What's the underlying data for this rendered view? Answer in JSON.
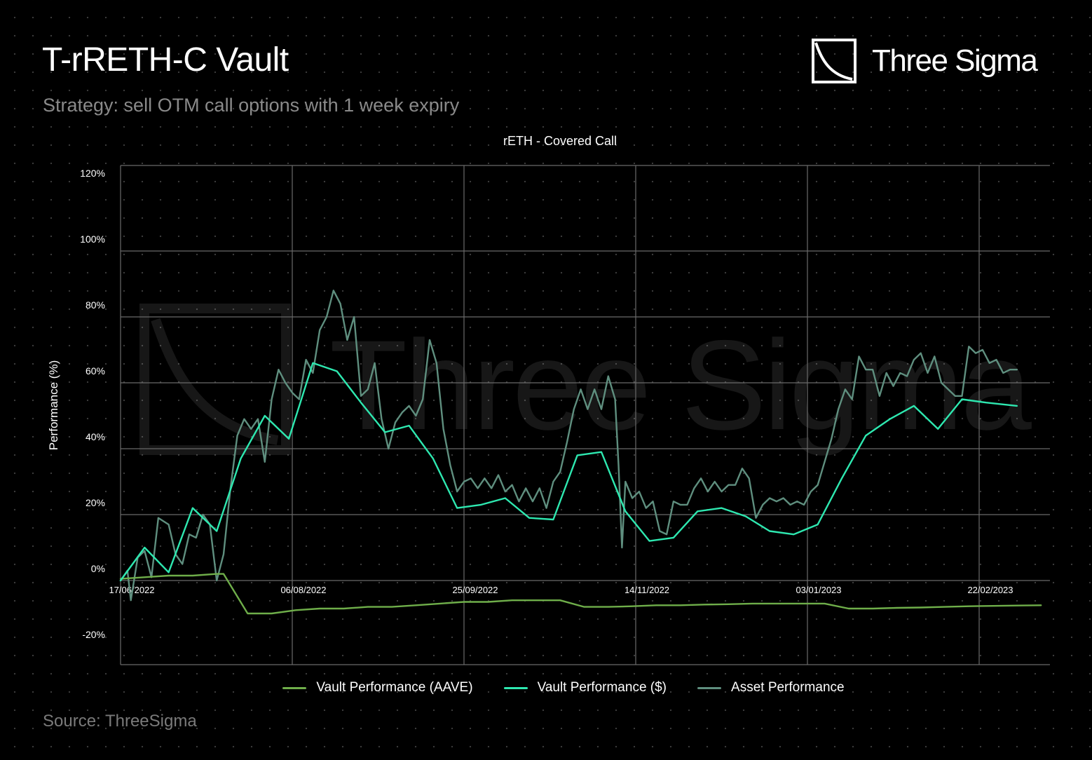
{
  "header": {
    "title": "T-rRETH-C Vault",
    "subtitle": "Strategy: sell OTM call options with 1 week expiry",
    "logo_text": "Three Sigma",
    "source": "Source: ThreeSigma"
  },
  "watermark": {
    "text": "Three Sigma"
  },
  "colors": {
    "background": "#000000",
    "grid": "#6a6a6a",
    "vault_aave": "#6fae4a",
    "vault_usd": "#2ee8b0",
    "asset": "#5f8f7f",
    "tick_text": "#ffffff"
  },
  "chart_data": {
    "type": "line",
    "title": "rETH - Covered Call",
    "xlabel": "",
    "ylabel": "Performance (%)",
    "ylim": [
      -25,
      125
    ],
    "yticks": [
      -20,
      0,
      20,
      40,
      60,
      80,
      100,
      120
    ],
    "ytick_labels": [
      "-20%",
      "0%",
      "20%",
      "40%",
      "60%",
      "80%",
      "100%",
      "120%"
    ],
    "xlim": [
      "2022-06-17",
      "2023-03-17"
    ],
    "xticks": [
      "2022-06-17",
      "2022-08-06",
      "2022-09-25",
      "2022-11-14",
      "2023-01-03",
      "2023-02-22"
    ],
    "xtick_labels": [
      "17/06/2022",
      "06/08/2022",
      "25/09/2022",
      "14/11/2022",
      "03/01/2023",
      "22/02/2023"
    ],
    "grid": true,
    "legend": "bottom",
    "series": [
      {
        "name": "Vault Performance (AAVE)",
        "color": "#6fae4a",
        "points": [
          [
            "2022-06-17",
            0.5
          ],
          [
            "2022-06-24",
            1
          ],
          [
            "2022-07-01",
            1.5
          ],
          [
            "2022-07-08",
            1.5
          ],
          [
            "2022-07-15",
            2
          ],
          [
            "2022-07-17",
            2
          ],
          [
            "2022-07-24",
            -10
          ],
          [
            "2022-07-31",
            -10
          ],
          [
            "2022-08-07",
            -9
          ],
          [
            "2022-08-14",
            -8.5
          ],
          [
            "2022-08-21",
            -8.5
          ],
          [
            "2022-08-28",
            -8
          ],
          [
            "2022-09-04",
            -8
          ],
          [
            "2022-09-11",
            -7.5
          ],
          [
            "2022-09-18",
            -7
          ],
          [
            "2022-09-25",
            -6.5
          ],
          [
            "2022-10-02",
            -6.5
          ],
          [
            "2022-10-09",
            -6
          ],
          [
            "2022-10-16",
            -6
          ],
          [
            "2022-10-23",
            -6
          ],
          [
            "2022-10-30",
            -8
          ],
          [
            "2022-11-06",
            -8
          ],
          [
            "2022-11-13",
            -7.8
          ],
          [
            "2022-11-20",
            -7.5
          ],
          [
            "2022-11-27",
            -7.5
          ],
          [
            "2022-12-04",
            -7.3
          ],
          [
            "2022-12-11",
            -7.2
          ],
          [
            "2022-12-18",
            -7
          ],
          [
            "2022-12-25",
            -7
          ],
          [
            "2023-01-01",
            -7
          ],
          [
            "2023-01-08",
            -7
          ],
          [
            "2023-01-15",
            -8.5
          ],
          [
            "2023-01-22",
            -8.5
          ],
          [
            "2023-01-29",
            -8.3
          ],
          [
            "2023-02-05",
            -8.2
          ],
          [
            "2023-02-12",
            -8
          ],
          [
            "2023-02-19",
            -7.8
          ],
          [
            "2023-02-26",
            -7.7
          ],
          [
            "2023-03-05",
            -7.6
          ],
          [
            "2023-03-12",
            -7.5
          ]
        ]
      },
      {
        "name": "Vault Performance ($)",
        "color": "#2ee8b0",
        "points": [
          [
            "2022-06-17",
            0
          ],
          [
            "2022-06-24",
            10
          ],
          [
            "2022-07-01",
            2.5
          ],
          [
            "2022-07-08",
            22
          ],
          [
            "2022-07-15",
            15
          ],
          [
            "2022-07-22",
            37
          ],
          [
            "2022-07-29",
            50
          ],
          [
            "2022-08-05",
            43
          ],
          [
            "2022-08-12",
            66
          ],
          [
            "2022-08-19",
            63.5
          ],
          [
            "2022-08-26",
            54
          ],
          [
            "2022-09-02",
            45
          ],
          [
            "2022-09-09",
            47
          ],
          [
            "2022-09-16",
            37
          ],
          [
            "2022-09-23",
            22
          ],
          [
            "2022-09-30",
            23
          ],
          [
            "2022-10-07",
            25
          ],
          [
            "2022-10-14",
            19
          ],
          [
            "2022-10-21",
            18.5
          ],
          [
            "2022-10-28",
            38
          ],
          [
            "2022-11-04",
            39
          ],
          [
            "2022-11-11",
            21
          ],
          [
            "2022-11-18",
            12
          ],
          [
            "2022-11-25",
            13
          ],
          [
            "2022-12-02",
            21
          ],
          [
            "2022-12-09",
            22
          ],
          [
            "2022-12-16",
            19.5
          ],
          [
            "2022-12-23",
            15
          ],
          [
            "2022-12-30",
            14
          ],
          [
            "2023-01-06",
            17
          ],
          [
            "2023-01-13",
            31
          ],
          [
            "2023-01-20",
            44
          ],
          [
            "2023-01-27",
            49
          ],
          [
            "2023-02-03",
            53
          ],
          [
            "2023-02-10",
            46
          ],
          [
            "2023-02-17",
            55
          ],
          [
            "2023-02-24",
            54
          ],
          [
            "2023-03-05",
            53
          ]
        ]
      },
      {
        "name": "Asset Performance",
        "color": "#5f8f7f",
        "points": [
          [
            "2022-06-17",
            0
          ],
          [
            "2022-06-19",
            3
          ],
          [
            "2022-06-20",
            -6
          ],
          [
            "2022-06-22",
            7
          ],
          [
            "2022-06-24",
            9
          ],
          [
            "2022-06-26",
            1
          ],
          [
            "2022-06-28",
            19
          ],
          [
            "2022-07-01",
            17
          ],
          [
            "2022-07-03",
            8
          ],
          [
            "2022-07-05",
            5
          ],
          [
            "2022-07-07",
            14
          ],
          [
            "2022-07-09",
            13
          ],
          [
            "2022-07-11",
            20
          ],
          [
            "2022-07-13",
            17
          ],
          [
            "2022-07-15",
            0
          ],
          [
            "2022-07-17",
            8
          ],
          [
            "2022-07-19",
            28
          ],
          [
            "2022-07-21",
            44
          ],
          [
            "2022-07-23",
            49
          ],
          [
            "2022-07-25",
            46
          ],
          [
            "2022-07-27",
            49
          ],
          [
            "2022-07-29",
            36
          ],
          [
            "2022-07-31",
            55
          ],
          [
            "2022-08-02",
            64
          ],
          [
            "2022-08-04",
            60
          ],
          [
            "2022-08-06",
            57
          ],
          [
            "2022-08-08",
            55
          ],
          [
            "2022-08-10",
            67
          ],
          [
            "2022-08-12",
            63
          ],
          [
            "2022-08-14",
            76
          ],
          [
            "2022-08-16",
            80
          ],
          [
            "2022-08-18",
            88
          ],
          [
            "2022-08-20",
            84
          ],
          [
            "2022-08-22",
            73
          ],
          [
            "2022-08-24",
            80
          ],
          [
            "2022-08-26",
            56
          ],
          [
            "2022-08-28",
            58
          ],
          [
            "2022-08-30",
            66
          ],
          [
            "2022-09-01",
            49
          ],
          [
            "2022-09-03",
            40
          ],
          [
            "2022-09-05",
            48
          ],
          [
            "2022-09-07",
            51
          ],
          [
            "2022-09-09",
            53
          ],
          [
            "2022-09-11",
            50
          ],
          [
            "2022-09-13",
            55
          ],
          [
            "2022-09-15",
            73
          ],
          [
            "2022-09-17",
            66
          ],
          [
            "2022-09-19",
            46
          ],
          [
            "2022-09-21",
            35
          ],
          [
            "2022-09-23",
            27
          ],
          [
            "2022-09-25",
            30
          ],
          [
            "2022-09-27",
            31
          ],
          [
            "2022-09-29",
            28
          ],
          [
            "2022-10-01",
            31
          ],
          [
            "2022-10-03",
            28
          ],
          [
            "2022-10-05",
            32
          ],
          [
            "2022-10-07",
            27
          ],
          [
            "2022-10-09",
            29
          ],
          [
            "2022-10-11",
            24
          ],
          [
            "2022-10-13",
            28
          ],
          [
            "2022-10-15",
            24
          ],
          [
            "2022-10-17",
            28
          ],
          [
            "2022-10-19",
            22
          ],
          [
            "2022-10-21",
            30
          ],
          [
            "2022-10-23",
            33
          ],
          [
            "2022-10-25",
            42
          ],
          [
            "2022-10-27",
            52
          ],
          [
            "2022-10-29",
            58
          ],
          [
            "2022-10-31",
            52
          ],
          [
            "2022-11-02",
            58
          ],
          [
            "2022-11-04",
            52
          ],
          [
            "2022-11-06",
            62
          ],
          [
            "2022-11-08",
            55
          ],
          [
            "2022-11-09",
            35
          ],
          [
            "2022-11-10",
            10
          ],
          [
            "2022-11-11",
            30
          ],
          [
            "2022-11-13",
            25
          ],
          [
            "2022-11-15",
            27
          ],
          [
            "2022-11-17",
            22
          ],
          [
            "2022-11-19",
            24
          ],
          [
            "2022-11-21",
            15
          ],
          [
            "2022-11-23",
            14
          ],
          [
            "2022-11-25",
            24
          ],
          [
            "2022-11-27",
            23
          ],
          [
            "2022-11-29",
            23
          ],
          [
            "2022-12-01",
            28
          ],
          [
            "2022-12-03",
            31
          ],
          [
            "2022-12-05",
            27
          ],
          [
            "2022-12-07",
            30
          ],
          [
            "2022-12-09",
            27
          ],
          [
            "2022-12-11",
            29
          ],
          [
            "2022-12-13",
            29
          ],
          [
            "2022-12-15",
            34
          ],
          [
            "2022-12-17",
            31
          ],
          [
            "2022-12-19",
            19
          ],
          [
            "2022-12-21",
            23
          ],
          [
            "2022-12-23",
            25
          ],
          [
            "2022-12-25",
            24
          ],
          [
            "2022-12-27",
            25
          ],
          [
            "2022-12-29",
            23
          ],
          [
            "2022-12-31",
            24
          ],
          [
            "2023-01-02",
            23
          ],
          [
            "2023-01-04",
            27
          ],
          [
            "2023-01-06",
            29
          ],
          [
            "2023-01-08",
            36
          ],
          [
            "2023-01-10",
            43
          ],
          [
            "2023-01-12",
            52
          ],
          [
            "2023-01-14",
            58
          ],
          [
            "2023-01-16",
            55
          ],
          [
            "2023-01-18",
            68
          ],
          [
            "2023-01-20",
            64
          ],
          [
            "2023-01-22",
            64
          ],
          [
            "2023-01-24",
            56
          ],
          [
            "2023-01-26",
            63
          ],
          [
            "2023-01-28",
            59
          ],
          [
            "2023-01-30",
            63
          ],
          [
            "2023-02-01",
            62
          ],
          [
            "2023-02-03",
            67
          ],
          [
            "2023-02-05",
            69
          ],
          [
            "2023-02-07",
            63
          ],
          [
            "2023-02-09",
            68
          ],
          [
            "2023-02-11",
            60
          ],
          [
            "2023-02-13",
            58
          ],
          [
            "2023-02-15",
            56
          ],
          [
            "2023-02-17",
            56
          ],
          [
            "2023-02-19",
            71
          ],
          [
            "2023-02-21",
            69
          ],
          [
            "2023-02-23",
            70
          ],
          [
            "2023-02-25",
            66
          ],
          [
            "2023-02-27",
            67
          ],
          [
            "2023-03-01",
            63
          ],
          [
            "2023-03-03",
            64
          ],
          [
            "2023-03-05",
            64
          ]
        ]
      }
    ]
  }
}
